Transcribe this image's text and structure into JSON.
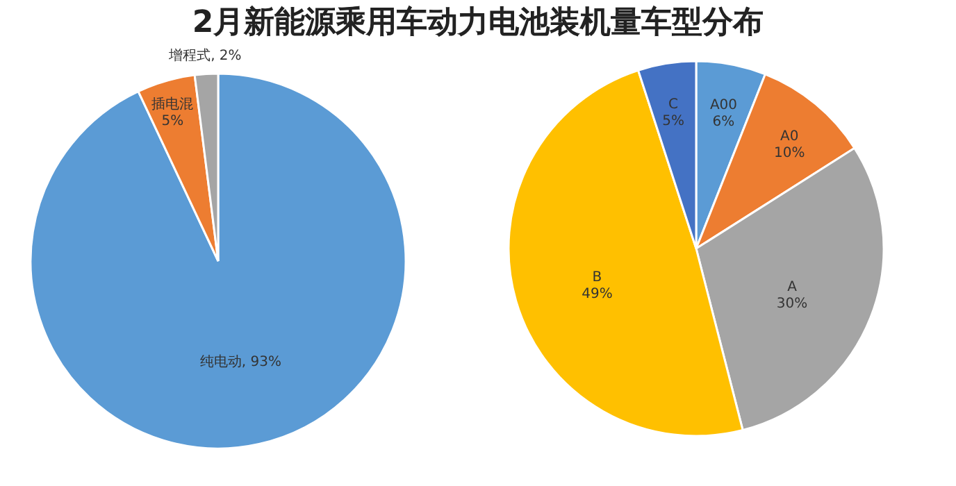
{
  "chart_data": [
    {
      "type": "pie",
      "title": "2月新能源乘用车动力电池装机量车型分布",
      "categories": [
        "纯电动",
        "插电混",
        "增程式"
      ],
      "values": [
        93,
        5,
        2
      ],
      "value_labels": [
        "93%",
        "5%",
        "2%"
      ],
      "colors": [
        "#5b9bd5",
        "#ed7d31",
        "#a5a5a5"
      ],
      "legend": false
    },
    {
      "type": "pie",
      "categories": [
        "A00",
        "A0",
        "A",
        "B",
        "C"
      ],
      "values": [
        6,
        10,
        30,
        49,
        5
      ],
      "value_labels": [
        "6%",
        "10%",
        "30%",
        "49%",
        "5%"
      ],
      "colors": [
        "#5b9bd5",
        "#ed7d31",
        "#a5a5a5",
        "#ffc000",
        "#4472c4"
      ],
      "legend": false
    }
  ]
}
